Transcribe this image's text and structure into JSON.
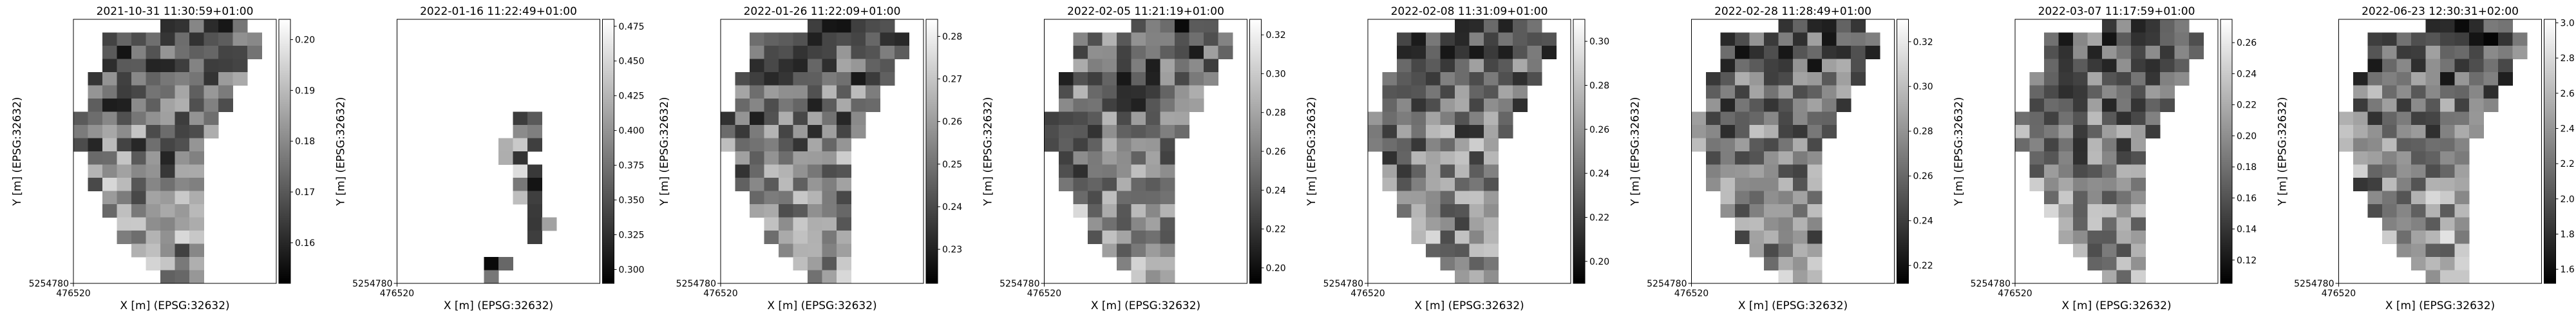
{
  "chart_data": [
    {
      "type": "heatmap",
      "title": "2021-10-31 11:30:59+01:00",
      "xlabel": "X [m] (EPSG:32632)",
      "ylabel": "Y [m] (EPSG:32632)",
      "x_tick": "476520",
      "y_tick": "5254780",
      "colorbar": {
        "ticks": [
          "0.16",
          "0.17",
          "0.18",
          "0.19",
          "0.20"
        ],
        "min": 0.152,
        "max": 0.204
      },
      "mask_variant": 0,
      "seed": 11
    },
    {
      "type": "heatmap",
      "title": "2022-01-16 11:22:49+01:00",
      "xlabel": "X [m] (EPSG:32632)",
      "ylabel": "Y [m] (EPSG:32632)",
      "x_tick": "476520",
      "y_tick": "5254780",
      "colorbar": {
        "ticks": [
          "0.300",
          "0.325",
          "0.350",
          "0.375",
          "0.400",
          "0.425",
          "0.450",
          "0.475"
        ],
        "min": 0.29,
        "max": 0.48
      },
      "mask_variant": 1,
      "seed": 23
    },
    {
      "type": "heatmap",
      "title": "2022-01-26 11:22:09+01:00",
      "xlabel": "X [m] (EPSG:32632)",
      "ylabel": "Y [m] (EPSG:32632)",
      "x_tick": "476520",
      "y_tick": "5254780",
      "colorbar": {
        "ticks": [
          "0.23",
          "0.24",
          "0.25",
          "0.26",
          "0.27",
          "0.28"
        ],
        "min": 0.222,
        "max": 0.284
      },
      "mask_variant": 0,
      "seed": 37
    },
    {
      "type": "heatmap",
      "title": "2022-02-05 11:21:19+01:00",
      "xlabel": "X [m] (EPSG:32632)",
      "ylabel": "Y [m] (EPSG:32632)",
      "x_tick": "476520",
      "y_tick": "5254780",
      "colorbar": {
        "ticks": [
          "0.20",
          "0.22",
          "0.24",
          "0.26",
          "0.28",
          "0.30",
          "0.32"
        ],
        "min": 0.192,
        "max": 0.328
      },
      "mask_variant": 0,
      "seed": 41
    },
    {
      "type": "heatmap",
      "title": "2022-02-08 11:31:09+01:00",
      "xlabel": "X [m] (EPSG:32632)",
      "ylabel": "Y [m] (EPSG:32632)",
      "x_tick": "476520",
      "y_tick": "5254780",
      "colorbar": {
        "ticks": [
          "0.20",
          "0.22",
          "0.24",
          "0.26",
          "0.28",
          "0.30"
        ],
        "min": 0.19,
        "max": 0.31
      },
      "mask_variant": 0,
      "seed": 53
    },
    {
      "type": "heatmap",
      "title": "2022-02-28 11:28:49+01:00",
      "xlabel": "X [m] (EPSG:32632)",
      "ylabel": "Y [m] (EPSG:32632)",
      "x_tick": "476520",
      "y_tick": "5254780",
      "colorbar": {
        "ticks": [
          "0.22",
          "0.24",
          "0.26",
          "0.28",
          "0.30",
          "0.32"
        ],
        "min": 0.212,
        "max": 0.33
      },
      "mask_variant": 0,
      "seed": 67
    },
    {
      "type": "heatmap",
      "title": "2022-03-07 11:17:59+01:00",
      "xlabel": "X [m] (EPSG:32632)",
      "ylabel": "Y [m] (EPSG:32632)",
      "x_tick": "476520",
      "y_tick": "5254780",
      "colorbar": {
        "ticks": [
          "0.12",
          "0.14",
          "0.16",
          "0.18",
          "0.20",
          "0.22",
          "0.24",
          "0.26"
        ],
        "min": 0.105,
        "max": 0.275
      },
      "mask_variant": 0,
      "seed": 79
    },
    {
      "type": "heatmap",
      "title": "2022-06-23 12:30:31+02:00",
      "xlabel": "X [m] (EPSG:32632)",
      "ylabel": "Y [m] (EPSG:32632)",
      "x_tick": "476520",
      "y_tick": "5254780",
      "colorbar": {
        "ticks": [
          "1.6",
          "1.8",
          "2.0",
          "2.2",
          "2.4",
          "2.6",
          "2.8",
          "3.0"
        ],
        "min": 1.52,
        "max": 3.02
      },
      "mask_variant": 0,
      "seed": 97
    }
  ]
}
